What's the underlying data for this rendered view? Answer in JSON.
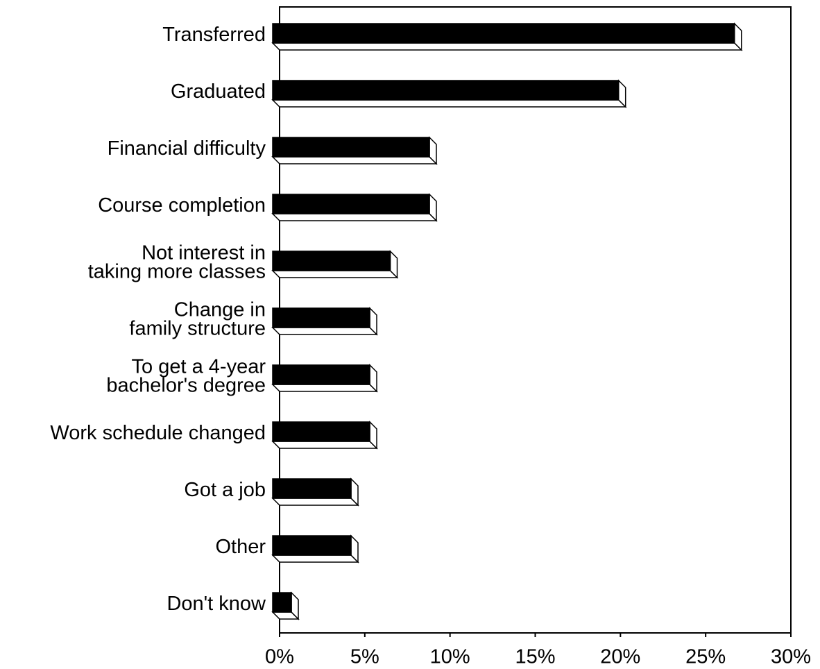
{
  "chart_data": {
    "type": "bar",
    "orientation": "horizontal",
    "categories": [
      "Transferred",
      "Graduated",
      "Financial difficulty",
      "Course completion",
      "Not interest in\ntaking more classes",
      "Change in\nfamily structure",
      "To get a 4-year\nbachelor's degree",
      "Work schedule changed",
      "Got a job",
      "Other",
      "Don't know"
    ],
    "values": [
      27.1,
      20.3,
      9.2,
      9.2,
      6.9,
      5.7,
      5.7,
      5.7,
      4.6,
      4.6,
      1.1
    ],
    "color": "#000000",
    "xlim": [
      0,
      30
    ],
    "xticks": [
      {
        "value": 0,
        "label": "0%"
      },
      {
        "value": 5,
        "label": "5%"
      },
      {
        "value": 10,
        "label": "10%"
      },
      {
        "value": 15,
        "label": "15%"
      },
      {
        "value": 20,
        "label": "20%"
      },
      {
        "value": 25,
        "label": "25%"
      },
      {
        "value": 30,
        "label": "30%"
      }
    ],
    "grid": false
  }
}
